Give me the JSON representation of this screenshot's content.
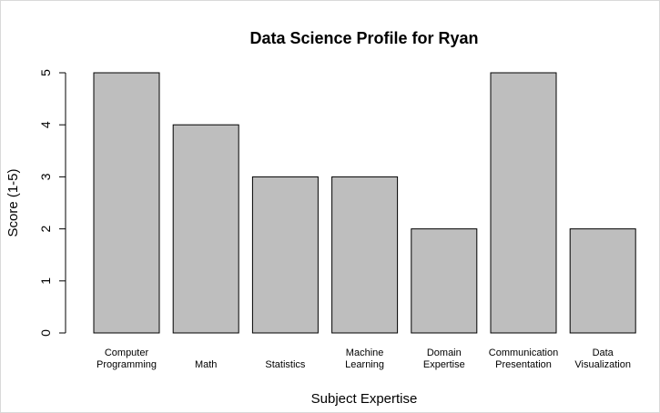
{
  "chart_data": {
    "type": "bar",
    "title": "Data Science Profile for Ryan",
    "xlabel": "Subject Expertise",
    "ylabel": "Score (1-5)",
    "ylim": [
      0,
      5
    ],
    "yticks": [
      "0",
      "1",
      "2",
      "3",
      "4",
      "5"
    ],
    "categories": [
      [
        "Computer",
        "Programming"
      ],
      [
        "Math"
      ],
      [
        "Statistics"
      ],
      [
        "Machine",
        "Learning"
      ],
      [
        "Domain",
        "Expertise"
      ],
      [
        "Communication",
        "Presentation"
      ],
      [
        "Data",
        "Visualization"
      ]
    ],
    "values": [
      5,
      4,
      3,
      3,
      2,
      5,
      2
    ],
    "bar_color": "#bebebe",
    "border_color": "#000000",
    "grid": false,
    "legend": "none"
  }
}
